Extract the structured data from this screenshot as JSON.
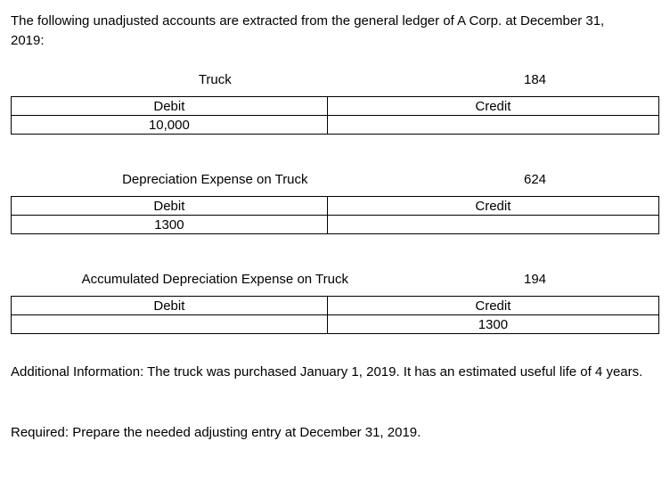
{
  "intro": "The following unadjusted accounts are extracted from the general ledger of A Corp. at December 31, 2019:",
  "headers": {
    "debit": "Debit",
    "credit": "Credit"
  },
  "accounts": [
    {
      "title": "Truck",
      "number": "184",
      "debit": "10,000",
      "credit": ""
    },
    {
      "title": "Depreciation Expense on Truck",
      "number": "624",
      "debit": "1300",
      "credit": ""
    },
    {
      "title": "Accumulated Depreciation Expense on Truck",
      "number": "194",
      "debit": "",
      "credit": "1300"
    }
  ],
  "additional_info": "Additional Information: The truck was purchased January 1, 2019. It has an estimated useful life of 4 years.",
  "required": "Required: Prepare the needed adjusting entry at December 31, 2019."
}
